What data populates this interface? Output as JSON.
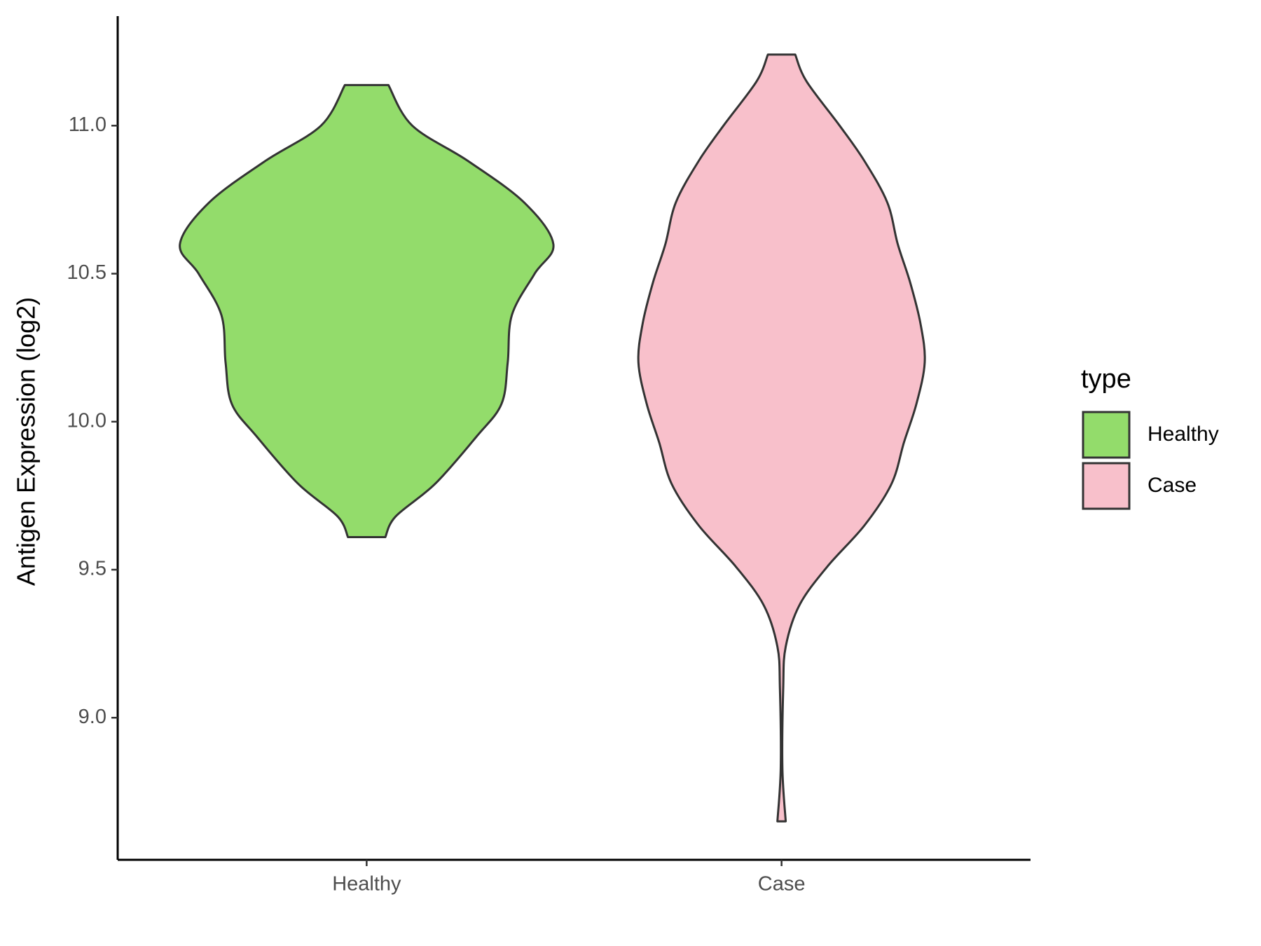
{
  "chart_data": {
    "type": "violin",
    "y_label": "Antigen Expression (log2)",
    "legend_title": "type",
    "categories": [
      "Healthy",
      "Case"
    ],
    "ylim": [
      8.52,
      11.37
    ],
    "yticks": [
      {
        "value": 9,
        "label": "9.0"
      },
      9.5,
      {
        "value": 10,
        "label": "10.0"
      },
      10.5,
      {
        "value": 11,
        "label": "11.0"
      }
    ],
    "series": [
      {
        "name": "Healthy",
        "color": "#93dc6b",
        "y": [
          11.137,
          11.0,
          10.88,
          10.74,
          10.6,
          10.5,
          10.36,
          10.2,
          10.06,
          9.95,
          9.79,
          9.68,
          9.61
        ],
        "widths": [
          0.105,
          0.22,
          0.49,
          0.76,
          0.9,
          0.81,
          0.7,
          0.68,
          0.65,
          0.53,
          0.33,
          0.14,
          0.09
        ]
      },
      {
        "name": "Case",
        "color": "#f8c0cb",
        "y": [
          11.24,
          11.15,
          11.0,
          10.88,
          10.74,
          10.6,
          10.47,
          10.33,
          10.2,
          10.06,
          9.93,
          9.79,
          9.65,
          9.51,
          9.38,
          9.24,
          9.1,
          8.83,
          8.65
        ],
        "widths": [
          0.066,
          0.12,
          0.28,
          0.4,
          0.51,
          0.56,
          0.62,
          0.67,
          0.69,
          0.65,
          0.59,
          0.53,
          0.4,
          0.22,
          0.086,
          0.02,
          0.008,
          0.004,
          0.02
        ]
      }
    ]
  }
}
